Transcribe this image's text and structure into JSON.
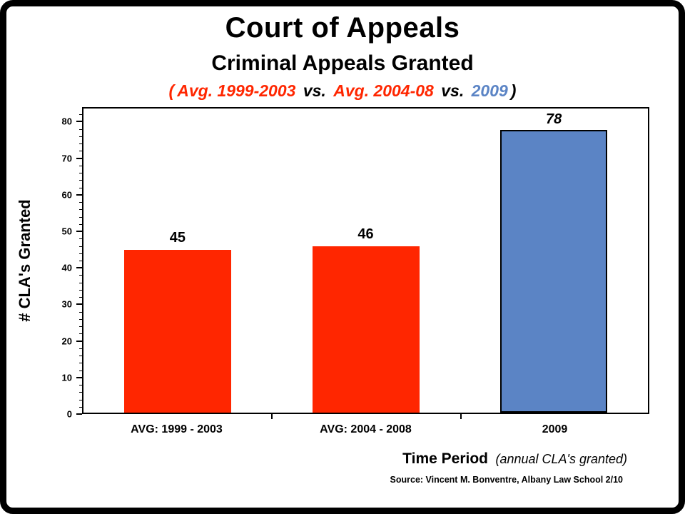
{
  "colors": {
    "red": "#FF2600",
    "blue": "#5B84C5",
    "black": "#000000"
  },
  "chart_data": {
    "type": "bar",
    "title": "Court of Appeals",
    "subtitle": "Criminal Appeals Granted",
    "comparison_line": [
      {
        "text": "(",
        "color": "#FF2600"
      },
      {
        "text": "Avg. 1999-2003",
        "color": "#FF2600"
      },
      {
        "text": " vs. ",
        "color": "#000000"
      },
      {
        "text": "Avg. 2004-08",
        "color": "#FF2600"
      },
      {
        "text": " vs. ",
        "color": "#000000"
      },
      {
        "text": "2009",
        "color": "#5B84C5"
      },
      {
        "text": ")",
        "color": "#000000"
      }
    ],
    "categories": [
      "AVG: 1999 - 2003",
      "AVG: 2004 - 2008",
      "2009"
    ],
    "values": [
      45,
      46,
      78
    ],
    "bar_colors": [
      "#FF2600",
      "#FF2600",
      "#5B84C5"
    ],
    "bar_borders": [
      "none",
      "none",
      "#000000"
    ],
    "value_label_styles": [
      "normal",
      "normal",
      "italic"
    ],
    "xlabel": "Time Period",
    "xlabel_note": "(annual CLA's granted)",
    "ylabel": "# CLA's Granted",
    "ylim": [
      0,
      80
    ],
    "ytick_step": 10,
    "grid": false,
    "legend": "none",
    "source": "Source: Vincent M. Bonventre, Albany Law School  2/10"
  }
}
